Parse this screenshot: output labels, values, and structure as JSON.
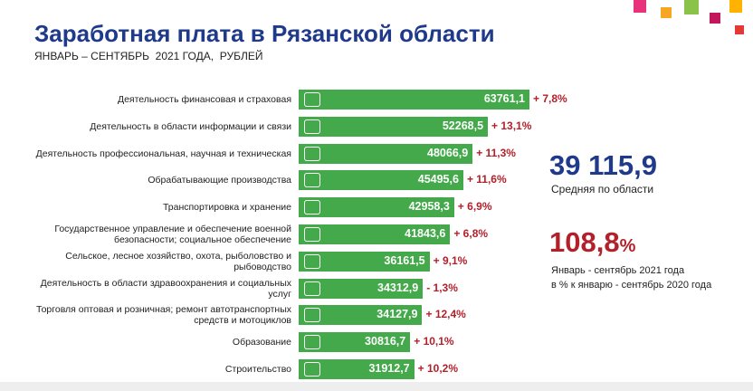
{
  "chart_data": {
    "type": "bar",
    "orientation": "horizontal",
    "title": "Заработная плата в Рязанской области",
    "subtitle": "ЯНВАРЬ – СЕНТЯБРЬ  2021 ГОДА,  РУБЛЕЙ",
    "categories": [
      "Деятельность финансовая и страховая",
      "Деятельность в области информации и связи",
      "Деятельность профессиональная, научная и техническая",
      "Обрабатывающие производства",
      "Транспортировка и хранение",
      "Государственное управление и обеспечение военной\nбезопасности; социальное обеспечение",
      "Сельское, лесное хозяйство, охота, рыболовство и\nрыбоводство",
      "Деятельность в области здравоохранения и социальных\nуслуг",
      "Торговля оптовая и розничная; ремонт автотранспортных\nсредств и мотоциклов",
      "Образование",
      "Строительство"
    ],
    "values": [
      63761.1,
      52268.5,
      48066.9,
      45495.6,
      42958.3,
      41843.6,
      36161.5,
      34312.9,
      34127.9,
      30816.7,
      31912.7
    ],
    "value_labels": [
      "63761,1",
      "52268,5",
      "48066,9",
      "45495,6",
      "42958,3",
      "41843,6",
      "36161,5",
      "34312,9",
      "34127,9",
      "30816,7",
      "31912,7"
    ],
    "change_labels": [
      "+ 7,8%",
      "+ 13,1%",
      "+ 11,3%",
      "+ 11,6%",
      "+ 6,9%",
      "+ 6,8%",
      "+ 9,1%",
      "- 1,3%",
      "+ 12,4%",
      "+ 10,1%",
      "+ 10,2%"
    ],
    "color": "#43a94a",
    "change_color": "#b3202a",
    "average": {
      "value": "39 115,9",
      "label": "Средняя по области"
    },
    "index": {
      "value": "108,8",
      "unit": "%",
      "label": "Январь - сентябрь 2021 года\nв % к январю - сентябрь 2020 года"
    }
  }
}
